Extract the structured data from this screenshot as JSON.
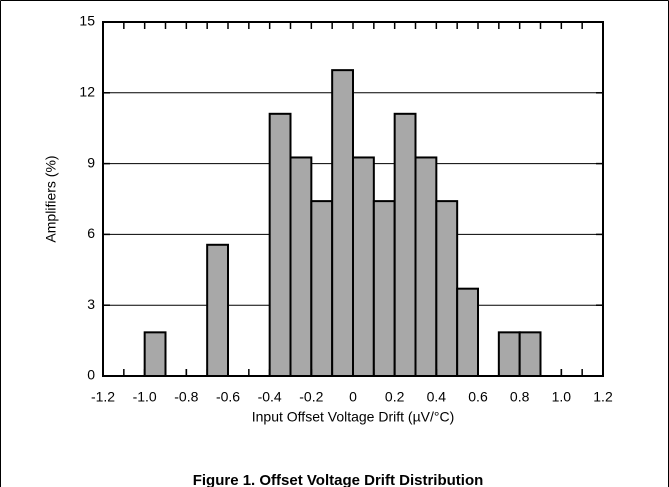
{
  "chart_data": {
    "type": "histogram",
    "title": "Figure 1. Offset Voltage Drift Distribution",
    "x_label": "Input Offset Voltage Drift (µV/°C)",
    "y_label": "Amplifiers (%)",
    "bins": [
      -1.2,
      -1.1,
      -1.0,
      -0.9,
      -0.8,
      -0.7,
      -0.6,
      -0.5,
      -0.4,
      -0.3,
      -0.2,
      -0.1,
      0,
      0.1,
      0.2,
      0.3,
      0.4,
      0.5,
      0.6,
      0.7,
      0.8,
      0.9,
      1.0,
      1.1,
      1.2
    ],
    "values": [
      0,
      0,
      1.85,
      0,
      0,
      5.56,
      0,
      0,
      11.11,
      9.26,
      7.41,
      12.96,
      9.26,
      7.41,
      11.11,
      9.26,
      7.41,
      3.7,
      0,
      1.85,
      1.85,
      0,
      0,
      0
    ],
    "color": "#a8a8a8",
    "xlim": [
      -1.2,
      1.2
    ],
    "xticks": [
      -1.2,
      {
        "value": -1,
        "label": "-1.0"
      },
      -0.8,
      -0.6,
      -0.4,
      -0.2,
      0,
      0.2,
      0.4,
      0.6,
      0.8,
      {
        "value": 1,
        "label": "1.0"
      },
      1.2
    ],
    "ylim": [
      0,
      15
    ],
    "yticks": [
      0,
      3,
      6,
      9,
      12,
      15
    ],
    "grid": true
  }
}
